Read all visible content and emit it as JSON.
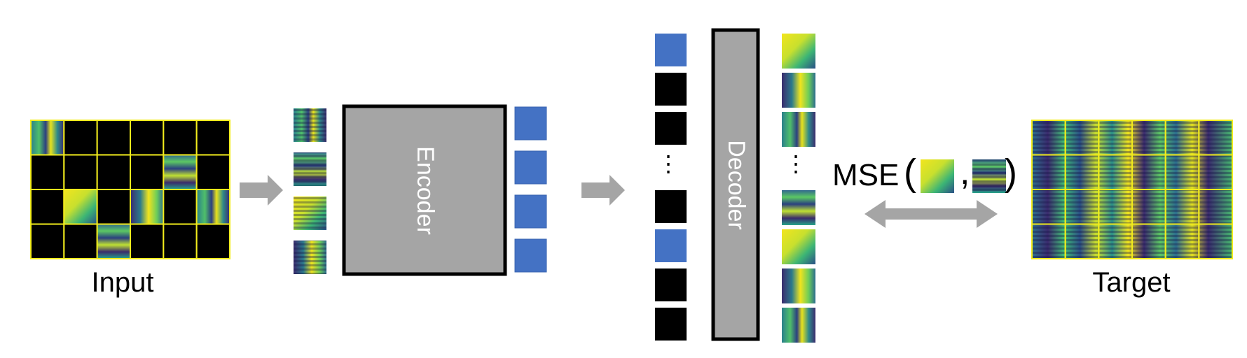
{
  "labels": {
    "input": "Input",
    "target": "Target",
    "encoder": "Encoder",
    "decoder": "Decoder",
    "loss": "MSE",
    "paren_open": "(",
    "paren_close": ")",
    "comma": ",",
    "ellipsis": "⋮"
  },
  "input_grid": {
    "rows": 4,
    "cols": 6,
    "visible_patches": [
      [
        0,
        0
      ],
      [
        1,
        4
      ],
      [
        2,
        1
      ],
      [
        2,
        3
      ],
      [
        2,
        5
      ],
      [
        3,
        2
      ]
    ]
  },
  "target_grid": {
    "rows": 4,
    "cols": 6
  },
  "encoder_inputs": {
    "count": 4
  },
  "encoder_outputs": {
    "count": 4
  },
  "decoder_inputs": {
    "tokens": [
      "encoded",
      "mask",
      "mask",
      "ellipsis",
      "mask",
      "encoded",
      "mask",
      "mask"
    ]
  },
  "decoder_outputs": {
    "tokens": [
      "patch",
      "patch",
      "patch",
      "ellipsis",
      "patch",
      "patch",
      "patch",
      "patch"
    ]
  },
  "colors": {
    "grid_line": "#f2ec1c",
    "mask": "#000000",
    "token": "#4472c4",
    "block": "#a5a5a5",
    "block_border": "#000000",
    "arrow": "#a5a5a5",
    "viridis_dark": "#3b2b6e",
    "viridis_mid": "#2a8f8a",
    "viridis_light": "#5fc864",
    "viridis_yellow": "#f2e51d"
  }
}
